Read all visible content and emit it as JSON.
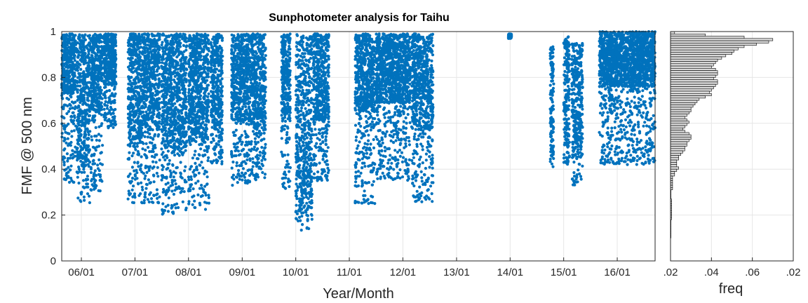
{
  "chart_data": [
    {
      "type": "scatter",
      "title": "Sunphotometer analysis for Taihu",
      "xlabel": "Year/Month",
      "ylabel": "FMF @ 500 nm",
      "xlim": [
        "2005-08-20",
        "2016-09-15"
      ],
      "ylim": [
        0,
        1
      ],
      "grid": true,
      "marker_color": "#0072BD",
      "x_ticks": [
        {
          "date": "2006-01-01",
          "label": "06/01"
        },
        {
          "date": "2007-01-01",
          "label": "07/01"
        },
        {
          "date": "2008-01-01",
          "label": "08/01"
        },
        {
          "date": "2009-01-01",
          "label": "09/01"
        },
        {
          "date": "2010-01-01",
          "label": "10/01"
        },
        {
          "date": "2011-01-01",
          "label": "11/01"
        },
        {
          "date": "2012-01-01",
          "label": "12/01"
        },
        {
          "date": "2013-01-01",
          "label": "13/01"
        },
        {
          "date": "2014-01-01",
          "label": "14/01"
        },
        {
          "date": "2015-01-01",
          "label": "15/01"
        },
        {
          "date": "2016-01-01",
          "label": "16/01"
        }
      ],
      "y_ticks": [
        {
          "value": 0,
          "label": "0"
        },
        {
          "value": 0.2,
          "label": "0.2"
        },
        {
          "value": 0.4,
          "label": "0.4"
        },
        {
          "value": 0.6,
          "label": "0.6"
        },
        {
          "value": 0.8,
          "label": "0.8"
        },
        {
          "value": 1,
          "label": "1"
        }
      ],
      "series": [
        {
          "clusters": [
            {
              "start": "2005-08-20",
              "end": "2005-11-25",
              "min": 0.34,
              "max": 0.99,
              "center": 0.86
            },
            {
              "start": "2005-12-01",
              "end": "2006-02-28",
              "min": 0.25,
              "max": 0.99,
              "center": 0.7
            },
            {
              "start": "2006-03-05",
              "end": "2006-05-25",
              "min": 0.3,
              "max": 0.99,
              "center": 0.82
            },
            {
              "start": "2006-06-01",
              "end": "2006-08-25",
              "min": 0.58,
              "max": 0.99,
              "center": 0.88
            },
            {
              "start": "2006-11-15",
              "end": "2007-02-28",
              "min": 0.25,
              "max": 0.99,
              "center": 0.75
            },
            {
              "start": "2007-03-01",
              "end": "2007-06-20",
              "min": 0.25,
              "max": 0.99,
              "center": 0.78
            },
            {
              "start": "2007-07-01",
              "end": "2007-12-20",
              "min": 0.2,
              "max": 0.99,
              "center": 0.74
            },
            {
              "start": "2008-01-01",
              "end": "2008-05-20",
              "min": 0.22,
              "max": 0.99,
              "center": 0.76
            },
            {
              "start": "2008-06-01",
              "end": "2008-08-20",
              "min": 0.42,
              "max": 0.99,
              "center": 0.78
            },
            {
              "start": "2008-10-20",
              "end": "2009-02-25",
              "min": 0.33,
              "max": 0.99,
              "center": 0.8
            },
            {
              "start": "2009-03-01",
              "end": "2009-06-10",
              "min": 0.35,
              "max": 0.99,
              "center": 0.78
            },
            {
              "start": "2009-09-25",
              "end": "2009-11-25",
              "min": 0.3,
              "max": 0.99,
              "center": 0.8
            },
            {
              "start": "2010-01-01",
              "end": "2010-04-25",
              "min": 0.12,
              "max": 0.99,
              "center": 0.6
            },
            {
              "start": "2010-05-01",
              "end": "2010-08-15",
              "min": 0.35,
              "max": 0.99,
              "center": 0.8
            },
            {
              "start": "2011-02-10",
              "end": "2011-06-25",
              "min": 0.25,
              "max": 0.99,
              "center": 0.82
            },
            {
              "start": "2011-07-01",
              "end": "2012-02-20",
              "min": 0.35,
              "max": 0.99,
              "center": 0.84
            },
            {
              "start": "2012-03-01",
              "end": "2012-07-25",
              "min": 0.25,
              "max": 0.99,
              "center": 0.78
            },
            {
              "start": "2013-12-20",
              "end": "2014-01-10",
              "min": 0.97,
              "max": 0.99,
              "center": 0.98
            },
            {
              "start": "2014-10-01",
              "end": "2014-10-25",
              "min": 0.38,
              "max": 0.94,
              "center": 0.7
            },
            {
              "start": "2015-01-01",
              "end": "2015-02-10",
              "min": 0.42,
              "max": 0.98,
              "center": 0.7
            },
            {
              "start": "2015-02-25",
              "end": "2015-05-10",
              "min": 0.33,
              "max": 0.95,
              "center": 0.7
            },
            {
              "start": "2015-09-01",
              "end": "2016-09-15",
              "min": 0.42,
              "max": 1.0,
              "center": 0.88
            }
          ]
        }
      ]
    },
    {
      "type": "bar",
      "orientation": "horizontal",
      "xlabel": "freq",
      "x_tick_labels": [
        ".02",
        ".04",
        ".06",
        ".02"
      ],
      "xlim": [
        0.02,
        0.08
      ],
      "ylim": [
        0,
        1
      ],
      "bar_color": "#d9d9d9",
      "bin_width": 0.01,
      "bin_centers": [
        0.995,
        0.985,
        0.975,
        0.965,
        0.955,
        0.945,
        0.935,
        0.925,
        0.915,
        0.905,
        0.895,
        0.885,
        0.875,
        0.865,
        0.855,
        0.845,
        0.835,
        0.825,
        0.815,
        0.805,
        0.795,
        0.785,
        0.775,
        0.765,
        0.755,
        0.745,
        0.735,
        0.725,
        0.715,
        0.705,
        0.695,
        0.685,
        0.675,
        0.665,
        0.655,
        0.645,
        0.635,
        0.625,
        0.615,
        0.605,
        0.595,
        0.585,
        0.575,
        0.565,
        0.555,
        0.545,
        0.535,
        0.525,
        0.515,
        0.505,
        0.495,
        0.485,
        0.475,
        0.465,
        0.455,
        0.445,
        0.435,
        0.425,
        0.415,
        0.405,
        0.395,
        0.385,
        0.375,
        0.365,
        0.355,
        0.345,
        0.335,
        0.325,
        0.315,
        0.305,
        0.295,
        0.285,
        0.275,
        0.265,
        0.255,
        0.245,
        0.235,
        0.225,
        0.215,
        0.205,
        0.195,
        0.185,
        0.175,
        0.165,
        0.155,
        0.145,
        0.135,
        0.125,
        0.115,
        0.105
      ],
      "values": [
        0.022,
        0.037,
        0.056,
        0.07,
        0.068,
        0.062,
        0.056,
        0.053,
        0.051,
        0.05,
        0.047,
        0.045,
        0.043,
        0.042,
        0.041,
        0.04,
        0.042,
        0.043,
        0.043,
        0.042,
        0.041,
        0.043,
        0.043,
        0.042,
        0.041,
        0.04,
        0.039,
        0.04,
        0.037,
        0.034,
        0.033,
        0.032,
        0.031,
        0.03,
        0.03,
        0.029,
        0.028,
        0.027,
        0.028,
        0.029,
        0.028,
        0.027,
        0.026,
        0.027,
        0.029,
        0.03,
        0.03,
        0.029,
        0.028,
        0.028,
        0.027,
        0.027,
        0.026,
        0.025,
        0.024,
        0.024,
        0.023,
        0.023,
        0.023,
        0.024,
        0.023,
        0.022,
        0.022,
        0.021,
        0.021,
        0.021,
        0.021,
        0.021,
        0.021,
        0.02,
        0.02,
        0.02,
        0.02,
        0.0205,
        0.0205,
        0.0205,
        0.0205,
        0.0205,
        0.0205,
        0.0205,
        0.0205,
        0.0205,
        0.02,
        0.02,
        0.02,
        0.02,
        0.02,
        0.02,
        0.02,
        0.02
      ]
    }
  ]
}
